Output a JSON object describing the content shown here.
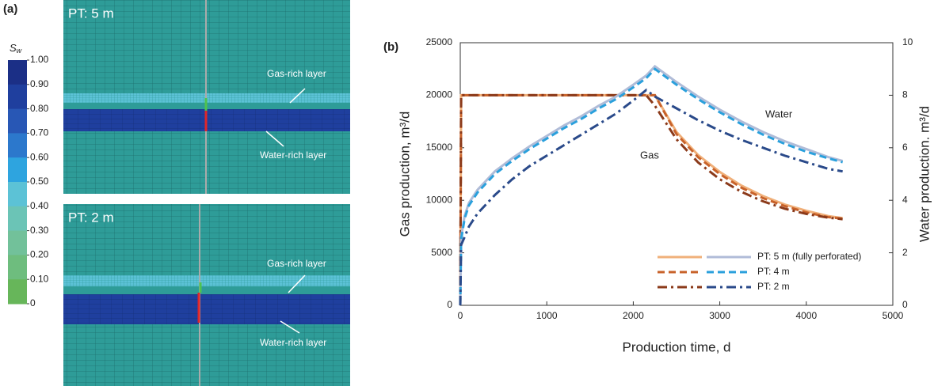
{
  "panel_a": {
    "label": "(a)",
    "colorbar": {
      "title": "S",
      "title_sub": "w",
      "ticks": [
        {
          "value": 1,
          "label": "1.00"
        },
        {
          "value": 0.9,
          "label": "0.90"
        },
        {
          "value": 0.8,
          "label": "0.80"
        },
        {
          "value": 0.7,
          "label": "0.70"
        },
        {
          "value": 0.6,
          "label": "0.60"
        },
        {
          "value": 0.5,
          "label": "0.50"
        },
        {
          "value": 0.4,
          "label": "0.40"
        },
        {
          "value": 0.3,
          "label": "0.30"
        },
        {
          "value": 0.2,
          "label": "0.20"
        },
        {
          "value": 0.1,
          "label": "0.10"
        },
        0
      ],
      "colors": [
        "#1b2f86",
        "#1f3f9e",
        "#2857b5",
        "#2c78cc",
        "#2ea4df",
        "#5cc2d6",
        "#6bc4b6",
        "#72c19a",
        "#6ebd7e",
        "#67b65a"
      ]
    },
    "views": [
      {
        "label": "PT: 5 m",
        "gas_label": "Gas-rich layer",
        "water_label": "Water-rich layer"
      },
      {
        "label": "PT: 2 m",
        "gas_label": "Gas-rich layer",
        "water_label": "Water-rich layer"
      }
    ]
  },
  "chart_data": {
    "type": "line",
    "panel_label": "(b)",
    "x_label": "Production time, d",
    "y_label": "Gas production, m³/d",
    "y2_label": "Water production. m³/d",
    "annotations": [
      "Water",
      "Gas"
    ],
    "xlim": [
      0,
      5000
    ],
    "xticks": [
      0,
      1000,
      2000,
      3000,
      4000,
      5000
    ],
    "ylim": [
      0,
      25000
    ],
    "yticks": [
      0,
      5000,
      10000,
      15000,
      20000,
      25000
    ],
    "y2lim": [
      0,
      10
    ],
    "y2ticks": [
      0,
      2,
      4,
      6,
      8,
      10
    ],
    "x": [
      0,
      10,
      50,
      100,
      200,
      400,
      600,
      800,
      1000,
      1200,
      1400,
      1600,
      1800,
      2000,
      2150,
      2250,
      2500,
      2750,
      3000,
      3250,
      3500,
      3750,
      4000,
      4250,
      4420
    ],
    "series": [
      {
        "name": "PT: 5 m (fully perforated)",
        "color": "#f0b07a",
        "dash": "solid",
        "values": [
          0,
          20000,
          20000,
          20000,
          20000,
          20000,
          20000,
          20000,
          20000,
          20000,
          20000,
          20000,
          20000,
          20000,
          20000,
          20000,
          16500,
          14300,
          12700,
          11400,
          10400,
          9600,
          9000,
          8500,
          8300
        ]
      },
      {
        "name": "PT: 4 m",
        "color": "#c8622a",
        "dash": "dash",
        "values": [
          0,
          20000,
          20000,
          20000,
          20000,
          20000,
          20000,
          20000,
          20000,
          20000,
          20000,
          20000,
          20000,
          20000,
          20000,
          20000,
          16300,
          14100,
          12500,
          11200,
          10200,
          9450,
          8850,
          8400,
          8250
        ]
      },
      {
        "name": "PT: 2 m",
        "color": "#8b3a1a",
        "dash": "dashdot",
        "values": [
          0,
          20000,
          20000,
          20000,
          20000,
          20000,
          20000,
          20000,
          20000,
          20000,
          20000,
          20000,
          20000,
          20000,
          20000,
          19000,
          15800,
          13600,
          12000,
          10800,
          9900,
          9200,
          8700,
          8350,
          8200
        ]
      },
      {
        "color": "#b0bcd8",
        "dash": "solid",
        "axis": "y2",
        "values": [
          0,
          2.6,
          3.4,
          3.9,
          4.4,
          5.1,
          5.6,
          6.05,
          6.45,
          6.85,
          7.2,
          7.6,
          7.95,
          8.4,
          8.75,
          9.1,
          8.5,
          7.95,
          7.45,
          7.0,
          6.6,
          6.25,
          5.95,
          5.65,
          5.5
        ]
      },
      {
        "color": "#2aa0dc",
        "dash": "dash",
        "axis": "y2",
        "values": [
          0,
          2.5,
          3.3,
          3.8,
          4.3,
          5.0,
          5.5,
          5.95,
          6.35,
          6.75,
          7.1,
          7.5,
          7.85,
          8.3,
          8.65,
          9.0,
          8.4,
          7.85,
          7.35,
          6.9,
          6.5,
          6.15,
          5.85,
          5.6,
          5.45
        ]
      },
      {
        "color": "#2a4a8a",
        "dash": "dashdot",
        "axis": "y2",
        "values": [
          0,
          2.3,
          2.6,
          3.0,
          3.5,
          4.2,
          4.8,
          5.3,
          5.7,
          6.1,
          6.5,
          6.9,
          7.3,
          7.8,
          8.2,
          7.95,
          7.5,
          7.05,
          6.65,
          6.3,
          6.0,
          5.7,
          5.45,
          5.2,
          5.1
        ]
      }
    ]
  }
}
